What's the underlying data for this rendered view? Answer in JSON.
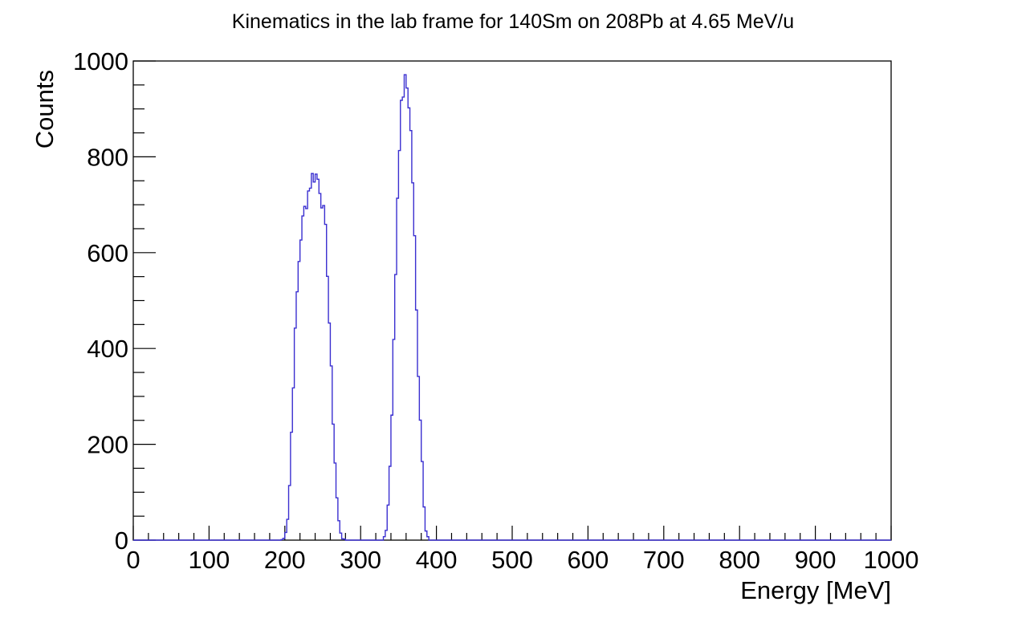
{
  "chart_data": {
    "type": "histogram",
    "title": "Kinematics in the lab frame for 140Sm on 208Pb at 4.65 MeV/u",
    "xlabel": "Energy [MeV]",
    "ylabel": "Counts",
    "xlim": [
      0,
      1000
    ],
    "ylim": [
      0,
      1000
    ],
    "x_ticks": [
      "0",
      "100",
      "200",
      "300",
      "400",
      "500",
      "600",
      "700",
      "800",
      "900",
      "1000"
    ],
    "y_ticks": [
      "0",
      "200",
      "400",
      "600",
      "800",
      "1000"
    ],
    "grid": false,
    "line_color": "#3a2fd0",
    "series": [
      {
        "x": [
          195,
          200,
          205,
          210,
          215,
          220,
          225,
          230,
          235,
          240,
          245,
          250,
          255,
          260,
          265,
          270,
          275,
          280,
          330,
          335,
          340,
          345,
          350,
          355,
          360,
          365,
          370,
          375,
          380,
          385,
          390
        ],
        "y": [
          0,
          5,
          60,
          280,
          480,
          620,
          680,
          720,
          755,
          765,
          750,
          700,
          620,
          400,
          200,
          50,
          5,
          0,
          0,
          30,
          200,
          480,
          800,
          930,
          960,
          900,
          700,
          400,
          210,
          30,
          0
        ]
      }
    ]
  }
}
